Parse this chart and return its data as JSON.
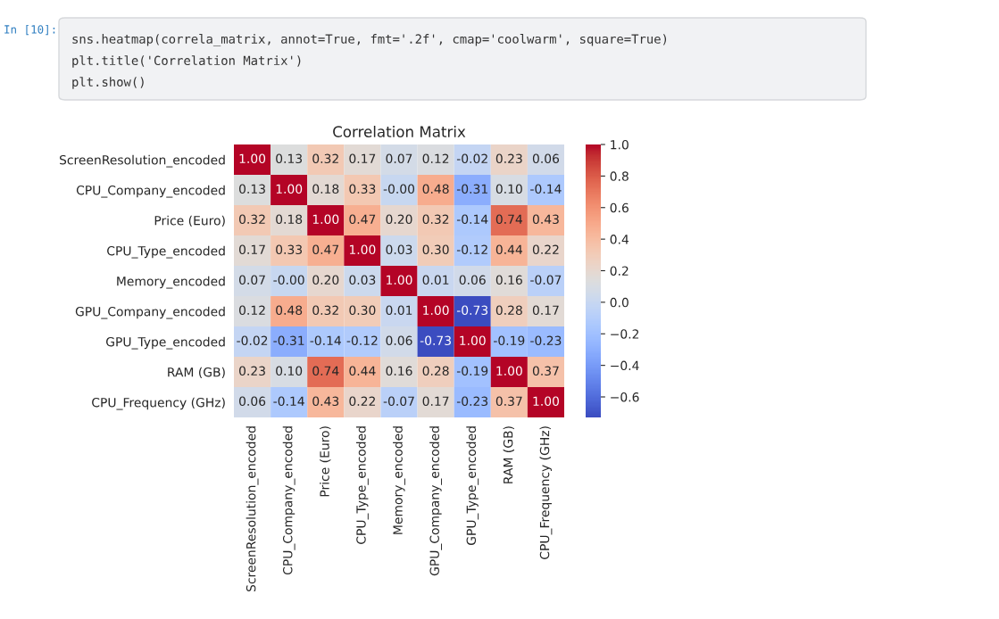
{
  "chart_data": {
    "type": "heatmap",
    "title": "Correlation Matrix",
    "annotations": [
      "In [10]:",
      "sns.heatmap(correla_matrix, annot=True, fmt='.2f', cmap='coolwarm', square=True)",
      "plt.title('Correlation Matrix')",
      "plt.show()"
    ],
    "categories": [
      "ScreenResolution_encoded",
      "CPU_Company_encoded",
      "Price (Euro)",
      "CPU_Type_encoded",
      "Memory_encoded",
      "GPU_Company_encoded",
      "GPU_Type_encoded",
      "RAM (GB)",
      "CPU_Frequency (GHz)"
    ],
    "y_categories": [
      "ScreenResolution_encoded",
      "CPU_Company_encoded",
      "Price (Euro)",
      "CPU_Type_encoded",
      "Memory_encoded",
      "GPU_Company_encoded",
      "GPU_Type_encoded",
      "RAM (GB)",
      "CPU_Frequency (GHz)"
    ],
    "cells": [
      [
        1.0,
        0.13,
        0.32,
        0.17,
        0.07,
        0.12,
        -0.02,
        0.23,
        0.06
      ],
      [
        0.13,
        1.0,
        0.18,
        0.33,
        -0.0,
        0.48,
        -0.31,
        0.1,
        -0.14
      ],
      [
        0.32,
        0.18,
        1.0,
        0.47,
        0.2,
        0.32,
        -0.14,
        0.74,
        0.43
      ],
      [
        0.17,
        0.33,
        0.47,
        1.0,
        0.03,
        0.3,
        -0.12,
        0.44,
        0.22
      ],
      [
        0.07,
        -0.0,
        0.2,
        0.03,
        1.0,
        0.01,
        0.06,
        0.16,
        -0.07
      ],
      [
        0.12,
        0.48,
        0.32,
        0.3,
        0.01,
        1.0,
        -0.73,
        0.28,
        0.17
      ],
      [
        -0.02,
        -0.31,
        -0.14,
        -0.12,
        0.06,
        -0.73,
        1.0,
        -0.19,
        -0.23
      ],
      [
        0.23,
        0.1,
        0.74,
        0.44,
        0.16,
        0.28,
        -0.19,
        1.0,
        0.37
      ],
      [
        0.06,
        -0.14,
        0.43,
        0.22,
        -0.07,
        0.17,
        -0.23,
        0.37,
        1.0
      ]
    ],
    "cell_labels": [
      [
        "1.00",
        "0.13",
        "0.32",
        "0.17",
        "0.07",
        "0.12",
        "-0.02",
        "0.23",
        "0.06"
      ],
      [
        "0.13",
        "1.00",
        "0.18",
        "0.33",
        "-0.00",
        "0.48",
        "-0.31",
        "0.10",
        "-0.14"
      ],
      [
        "0.32",
        "0.18",
        "1.00",
        "0.47",
        "0.20",
        "0.32",
        "-0.14",
        "0.74",
        "0.43"
      ],
      [
        "0.17",
        "0.33",
        "0.47",
        "1.00",
        "0.03",
        "0.30",
        "-0.12",
        "0.44",
        "0.22"
      ],
      [
        "0.07",
        "-0.00",
        "0.20",
        "0.03",
        "1.00",
        "0.01",
        "0.06",
        "0.16",
        "-0.07"
      ],
      [
        "0.12",
        "0.48",
        "0.32",
        "0.30",
        "0.01",
        "1.00",
        "-0.73",
        "0.28",
        "0.17"
      ],
      [
        "-0.02",
        "-0.31",
        "-0.14",
        "-0.12",
        "0.06",
        "-0.73",
        "1.00",
        "-0.19",
        "-0.23"
      ],
      [
        "0.23",
        "0.10",
        "0.74",
        "0.44",
        "0.16",
        "0.28",
        "-0.19",
        "1.00",
        "0.37"
      ],
      [
        "0.06",
        "-0.14",
        "0.43",
        "0.22",
        "-0.07",
        "0.17",
        "-0.23",
        "0.37",
        "1.00"
      ]
    ],
    "clim": [
      -0.73,
      1.0
    ],
    "cticks": [
      {
        "value": -0.6,
        "label": "−0.6"
      },
      {
        "value": -0.4,
        "label": "−0.4"
      },
      {
        "value": -0.2,
        "label": "−0.2"
      },
      {
        "value": 0.0,
        "label": "0.0"
      },
      0.2,
      0.4,
      0.6,
      0.8,
      {
        "value": 1.0,
        "label": "1.0"
      }
    ]
  }
}
